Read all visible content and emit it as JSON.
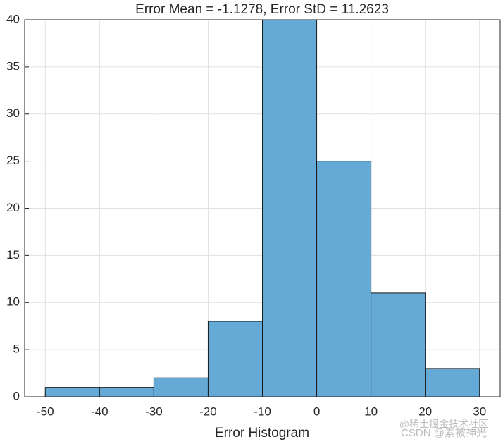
{
  "chart_data": {
    "type": "histogram",
    "title": "Error Mean = -1.1278, Error StD = 11.2623",
    "xlabel": "Error Histogram",
    "bins": [
      -50,
      -40,
      -30,
      -20,
      -10,
      0,
      10,
      20,
      30
    ],
    "counts": [
      1,
      1,
      2,
      8,
      40,
      25,
      11,
      3
    ],
    "color": "#65a9d7",
    "xlim": [
      -53.8,
      33.8
    ],
    "xticks": [
      -50,
      -40,
      -30,
      -20,
      -10,
      0,
      10,
      20,
      30
    ],
    "ylim": [
      0,
      40
    ],
    "yticks": [
      0,
      5,
      10,
      15,
      20,
      25,
      30,
      35,
      40
    ],
    "grid": true,
    "watermarks": [
      "@稀土掘金技术社区",
      "CSDN @素被神光"
    ]
  }
}
